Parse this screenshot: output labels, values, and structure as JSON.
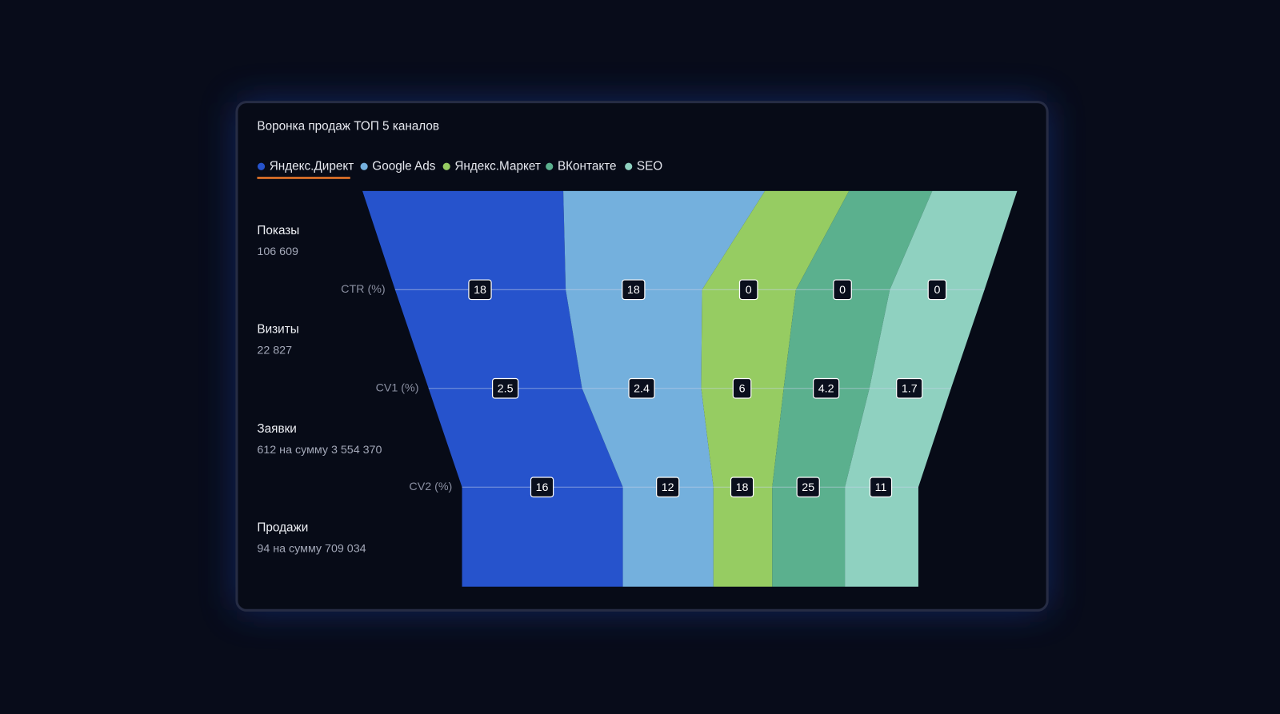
{
  "chart_data": {
    "type": "funnel",
    "title": "Воронка продаж ТОП 5 каналов",
    "series": [
      {
        "name": "Яндекс.Директ",
        "color": "#2653cc"
      },
      {
        "name": "Google Ads",
        "color": "#74b0dd"
      },
      {
        "name": "Яндекс.Маркет",
        "color": "#96cc62"
      },
      {
        "name": "ВКонтакте",
        "color": "#5bb08e"
      },
      {
        "name": "SEO",
        "color": "#8fd1c0"
      }
    ],
    "stages": [
      {
        "name": "Показы",
        "value": "106 609"
      },
      {
        "name": "Визиты",
        "value": "22 827"
      },
      {
        "name": "Заявки",
        "value": "612 на сумму 3 554 370"
      },
      {
        "name": "Продажи",
        "value": "94 на сумму 709 034"
      }
    ],
    "rates": [
      {
        "name": "CTR (%)",
        "values": [
          18,
          18,
          0,
          0,
          0
        ]
      },
      {
        "name": "CV1 (%)",
        "values": [
          2.5,
          2.4,
          6,
          4.2,
          1.7
        ]
      },
      {
        "name": "CV2 (%)",
        "values": [
          16,
          12,
          18,
          25,
          11
        ]
      }
    ]
  }
}
